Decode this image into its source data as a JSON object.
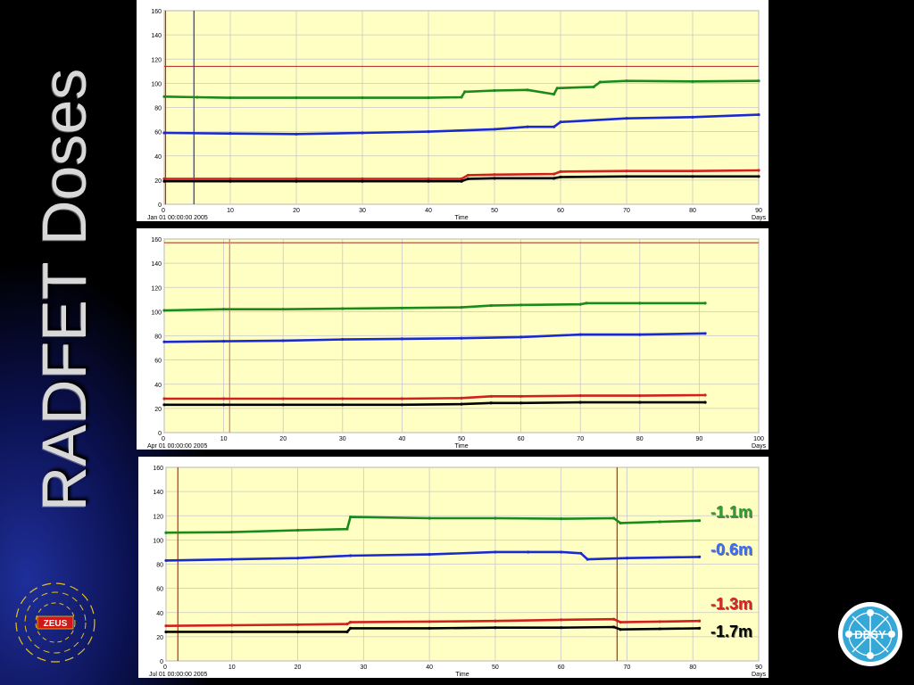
{
  "slide": {
    "title": "RADFET Doses",
    "labels": [
      "-1.1m",
      "-0.6m",
      "-1.3m",
      "-1.7m"
    ],
    "label_colors": [
      "#2aa02a",
      "#3a6cff",
      "#e02020",
      "#000000"
    ],
    "logos": {
      "left": "ZEUS",
      "right": "DESY"
    }
  },
  "chart_data": [
    {
      "type": "line",
      "start_label": "Jan 01 00:00:00 2005",
      "xlabel": "Time",
      "x_unit": "Days",
      "xlim": [
        0,
        90
      ],
      "ylim": [
        0,
        160
      ],
      "xticks": [
        0,
        10,
        20,
        30,
        40,
        50,
        60,
        70,
        80,
        90
      ],
      "yticks": [
        0,
        20,
        40,
        60,
        80,
        100,
        120,
        140,
        160
      ],
      "grid": true,
      "hlines": [
        {
          "y": 114,
          "color": "#b02020"
        }
      ],
      "vlines": [
        {
          "x": 0.2,
          "color": "#d02020"
        },
        {
          "x": 4.5,
          "color": "#2030d0"
        }
      ],
      "series": [
        {
          "color": "#1a8a1a",
          "x": [
            0,
            5,
            10,
            20,
            30,
            40,
            45,
            45.5,
            50,
            55,
            59,
            59.5,
            65,
            66,
            70,
            80,
            90
          ],
          "y": [
            89,
            88.5,
            88,
            88,
            88,
            88,
            88.5,
            93,
            94,
            94.5,
            91,
            96,
            97,
            101,
            102,
            101.5,
            102
          ]
        },
        {
          "color": "#1a2ad0",
          "x": [
            0,
            10,
            20,
            30,
            40,
            50,
            55,
            59,
            60,
            70,
            80,
            90
          ],
          "y": [
            59,
            58.5,
            58,
            59,
            60,
            62,
            64,
            64,
            68,
            71,
            72,
            74
          ]
        },
        {
          "color": "#d02020",
          "x": [
            0,
            10,
            20,
            30,
            40,
            45,
            46,
            50,
            59,
            60,
            70,
            80,
            90
          ],
          "y": [
            21,
            21,
            21,
            21,
            21,
            21,
            24,
            24.5,
            25,
            27,
            27.5,
            27.5,
            28
          ]
        },
        {
          "color": "#000000",
          "x": [
            0,
            10,
            20,
            30,
            40,
            45,
            46,
            50,
            59,
            60,
            70,
            80,
            90
          ],
          "y": [
            19,
            19,
            19,
            19,
            19,
            19,
            21,
            21.5,
            21.5,
            22.5,
            23,
            23,
            23
          ]
        }
      ]
    },
    {
      "type": "line",
      "start_label": "Apr 01 00:00:00 2005",
      "xlabel": "Time",
      "x_unit": "Days",
      "xlim": [
        0,
        100
      ],
      "ylim": [
        0,
        160
      ],
      "xticks": [
        0,
        10,
        20,
        30,
        40,
        50,
        60,
        70,
        80,
        90,
        100
      ],
      "yticks": [
        0,
        20,
        40,
        60,
        80,
        100,
        120,
        140,
        160
      ],
      "grid": true,
      "hlines": [
        {
          "y": 157,
          "color": "#b02020"
        }
      ],
      "vlines": [
        {
          "x": 11,
          "color": "#d08080"
        }
      ],
      "series": [
        {
          "color": "#1a8a1a",
          "x": [
            0,
            10,
            20,
            30,
            40,
            50,
            55,
            60,
            70,
            71,
            80,
            91
          ],
          "y": [
            101,
            102,
            102,
            102.5,
            103,
            103.5,
            105,
            105.5,
            106,
            107,
            107,
            107
          ]
        },
        {
          "color": "#1a2ad0",
          "x": [
            0,
            10,
            20,
            30,
            40,
            50,
            60,
            70,
            80,
            91
          ],
          "y": [
            75,
            75.5,
            76,
            77,
            77.5,
            78,
            79,
            81,
            81,
            82
          ]
        },
        {
          "color": "#d02020",
          "x": [
            0,
            10,
            20,
            30,
            40,
            50,
            55,
            60,
            70,
            80,
            91
          ],
          "y": [
            28,
            28,
            28,
            28,
            28,
            28.5,
            30,
            30,
            30.5,
            30.5,
            31
          ]
        },
        {
          "color": "#000000",
          "x": [
            0,
            10,
            20,
            30,
            40,
            50,
            55,
            60,
            70,
            80,
            91
          ],
          "y": [
            23,
            23,
            23,
            23,
            23,
            23.5,
            24.5,
            24.5,
            25,
            25,
            25
          ]
        }
      ]
    },
    {
      "type": "line",
      "start_label": "Jul 01 00:00:00 2005",
      "xlabel": "Time",
      "x_unit": "Days",
      "xlim": [
        0,
        90
      ],
      "ylim": [
        0,
        160
      ],
      "xticks": [
        0,
        10,
        20,
        30,
        40,
        50,
        60,
        70,
        80,
        90
      ],
      "yticks": [
        0,
        20,
        40,
        60,
        80,
        100,
        120,
        140,
        160
      ],
      "grid": true,
      "hlines": [],
      "vlines": [
        {
          "x": 1.8,
          "color": "#d02020"
        },
        {
          "x": 68.5,
          "color": "#d02020"
        }
      ],
      "series": [
        {
          "color": "#1a8a1a",
          "x": [
            0,
            10,
            20,
            27.5,
            28,
            40,
            50,
            60,
            68,
            69,
            75,
            81
          ],
          "y": [
            106,
            106.5,
            108,
            109,
            119,
            118,
            118,
            117.5,
            118,
            114,
            115,
            116
          ]
        },
        {
          "color": "#1a2ad0",
          "x": [
            0,
            10,
            20,
            28,
            40,
            50,
            55,
            60,
            63,
            64,
            70,
            81
          ],
          "y": [
            83,
            84,
            85,
            87,
            88,
            90,
            90,
            90,
            89,
            84,
            85,
            86
          ]
        },
        {
          "color": "#d02020",
          "x": [
            0,
            10,
            20,
            27.5,
            28,
            40,
            50,
            60,
            68,
            69,
            75,
            81
          ],
          "y": [
            29,
            29.5,
            30,
            30.5,
            32,
            32.5,
            33,
            34,
            34.5,
            32,
            32.5,
            33
          ]
        },
        {
          "color": "#000000",
          "x": [
            0,
            10,
            20,
            27.5,
            28,
            40,
            50,
            60,
            68,
            69,
            75,
            81
          ],
          "y": [
            24,
            24,
            24,
            24,
            27,
            27,
            27.5,
            27.5,
            28,
            26,
            26.5,
            27
          ]
        }
      ]
    }
  ]
}
